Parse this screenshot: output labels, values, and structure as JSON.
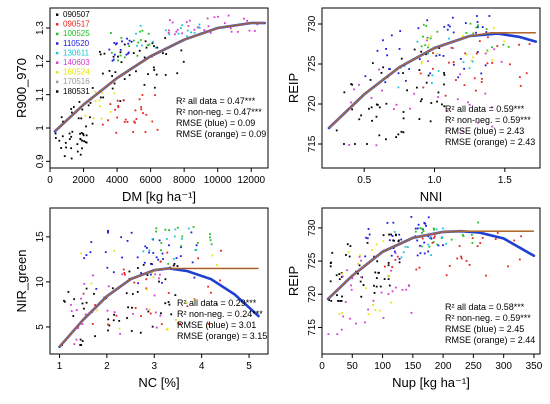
{
  "legend": {
    "entries": [
      {
        "label": "090507",
        "color": "#000000"
      },
      {
        "label": "090517",
        "color": "#e8221d"
      },
      {
        "label": "100525",
        "color": "#1fbf1f"
      },
      {
        "label": "110520",
        "color": "#1a1ae0"
      },
      {
        "label": "130611",
        "color": "#18c6d8"
      },
      {
        "label": "140603",
        "color": "#d23cd2"
      },
      {
        "label": "160524",
        "color": "#e6e60a"
      },
      {
        "label": "170516",
        "color": "#9a9a9a"
      },
      {
        "label": "180531",
        "color": "#000000"
      }
    ]
  },
  "chart_data": [
    {
      "type": "scatter",
      "xlabel": "DM [kg ha⁻¹]",
      "ylabel": "R900_970",
      "xlim": [
        0,
        13000
      ],
      "ylim": [
        0.88,
        1.36
      ],
      "xticks": [
        0,
        2000,
        4000,
        6000,
        8000,
        10000,
        12000
      ],
      "yticks": [
        0.9,
        1.0,
        1.1,
        1.2,
        1.3
      ],
      "stats": [
        "R² all data = 0.47***",
        "R² non-neg. = 0.47***",
        "RMSE (blue) = 0.09",
        "RMSE (orange) = 0.09"
      ],
      "fit_blue": [
        [
          300,
          0.99
        ],
        [
          2000,
          1.07
        ],
        [
          4000,
          1.15
        ],
        [
          6000,
          1.215
        ],
        [
          8000,
          1.265
        ],
        [
          10000,
          1.3
        ],
        [
          12000,
          1.315
        ],
        [
          12800,
          1.315
        ]
      ],
      "fit_orange": [
        [
          300,
          0.99
        ],
        [
          2000,
          1.07
        ],
        [
          4000,
          1.15
        ],
        [
          6000,
          1.215
        ],
        [
          8000,
          1.265
        ],
        [
          10000,
          1.3
        ],
        [
          12000,
          1.315
        ],
        [
          12800,
          1.315
        ]
      ],
      "clusters": [
        {
          "color": "#000000",
          "x": [
            300,
            2600
          ],
          "y": [
            0.9,
            1.08
          ],
          "n": 45,
          "trend": 0.06
        },
        {
          "color": "#000000",
          "x": [
            2500,
            8000
          ],
          "y": [
            1.08,
            1.27
          ],
          "n": 45,
          "trend": 0.05
        },
        {
          "color": "#e8221d",
          "x": [
            3000,
            6500
          ],
          "y": [
            0.97,
            1.1
          ],
          "n": 28,
          "trend": 0.03
        },
        {
          "color": "#1a1ae0",
          "x": [
            3500,
            5000
          ],
          "y": [
            1.2,
            1.27
          ],
          "n": 16,
          "trend": 0.02
        },
        {
          "color": "#1fbf1f",
          "x": [
            3500,
            6500
          ],
          "y": [
            1.2,
            1.3
          ],
          "n": 16,
          "trend": 0.02
        },
        {
          "color": "#18c6d8",
          "x": [
            5000,
            9000
          ],
          "y": [
            1.24,
            1.32
          ],
          "n": 20,
          "trend": 0.02
        },
        {
          "color": "#d23cd2",
          "x": [
            7000,
            12800
          ],
          "y": [
            1.28,
            1.34
          ],
          "n": 30,
          "trend": 0.01
        },
        {
          "color": "#e6e60a",
          "x": [
            2000,
            4000
          ],
          "y": [
            1.02,
            1.12
          ],
          "n": 10,
          "trend": 0.02
        }
      ]
    },
    {
      "type": "scatter",
      "xlabel": "NNI",
      "ylabel": "REIP",
      "xlim": [
        0.2,
        1.75
      ],
      "ylim": [
        712,
        732
      ],
      "xticks": [
        0.5,
        1.0,
        1.5
      ],
      "xtick_labels": [
        "0.5",
        "1.0",
        "1.5"
      ],
      "yticks": [
        715,
        720,
        725,
        730
      ],
      "stats": [
        "R² all data = 0.59***",
        "R² non-neg. = 0.59***",
        "RMSE (blue) = 2.43",
        "RMSE (orange) = 2.43"
      ],
      "fit_blue": [
        [
          0.25,
          717
        ],
        [
          0.5,
          721.2
        ],
        [
          0.75,
          724.6
        ],
        [
          1.0,
          727.0
        ],
        [
          1.25,
          728.5
        ],
        [
          1.45,
          728.8
        ],
        [
          1.6,
          728.4
        ],
        [
          1.72,
          727.8
        ]
      ],
      "fit_orange": [
        [
          0.25,
          717
        ],
        [
          0.5,
          721.2
        ],
        [
          0.75,
          724.6
        ],
        [
          1.0,
          727.0
        ],
        [
          1.25,
          728.5
        ],
        [
          1.4,
          728.9
        ],
        [
          1.72,
          728.9
        ]
      ],
      "clusters": [
        {
          "color": "#000000",
          "x": [
            0.3,
            1.1
          ],
          "y": [
            715,
            727
          ],
          "n": 55,
          "trend": 6
        },
        {
          "color": "#1a1ae0",
          "x": [
            0.5,
            1.4
          ],
          "y": [
            722,
            731
          ],
          "n": 45,
          "trend": 3
        },
        {
          "color": "#d23cd2",
          "x": [
            0.3,
            1.5
          ],
          "y": [
            714,
            729
          ],
          "n": 30,
          "trend": 4
        },
        {
          "color": "#e8221d",
          "x": [
            0.9,
            1.7
          ],
          "y": [
            721,
            729
          ],
          "n": 28,
          "trend": 2
        },
        {
          "color": "#1fbf1f",
          "x": [
            0.9,
            1.6
          ],
          "y": [
            726,
            731
          ],
          "n": 18,
          "trend": 1
        },
        {
          "color": "#e6e60a",
          "x": [
            0.9,
            1.6
          ],
          "y": [
            725,
            730
          ],
          "n": 14,
          "trend": 1
        },
        {
          "color": "#18c6d8",
          "x": [
            0.7,
            1.3
          ],
          "y": [
            722,
            729
          ],
          "n": 12,
          "trend": 1
        }
      ]
    },
    {
      "type": "scatter",
      "xlabel": "NC [%]",
      "ylabel": "NIR_green",
      "xlim": [
        0.8,
        5.4
      ],
      "ylim": [
        2,
        18.2
      ],
      "xticks": [
        1,
        2,
        3,
        4,
        5
      ],
      "yticks": [
        5,
        10,
        15
      ],
      "stats": [
        "R² all data = 0.29***",
        "R² non-neg. = 0.24***",
        "RMSE (blue) = 3.01",
        "RMSE (orange) = 3.15"
      ],
      "fit_blue": [
        [
          1.0,
          2.8
        ],
        [
          1.5,
          5.8
        ],
        [
          2.0,
          8.4
        ],
        [
          2.5,
          10.3
        ],
        [
          3.0,
          11.3
        ],
        [
          3.3,
          11.5
        ],
        [
          3.7,
          11.2
        ],
        [
          4.2,
          10.3
        ],
        [
          4.7,
          8.6
        ],
        [
          5.2,
          6.2
        ]
      ],
      "fit_orange": [
        [
          1.0,
          2.8
        ],
        [
          1.5,
          5.8
        ],
        [
          2.0,
          8.4
        ],
        [
          2.5,
          10.3
        ],
        [
          3.0,
          11.3
        ],
        [
          3.3,
          11.5
        ],
        [
          3.6,
          11.5
        ],
        [
          5.2,
          11.5
        ]
      ],
      "clusters": [
        {
          "color": "#000000",
          "x": [
            1.0,
            3.5
          ],
          "y": [
            3,
            12
          ],
          "n": 55,
          "trend": 4
        },
        {
          "color": "#1a1ae0",
          "x": [
            1.5,
            4.0
          ],
          "y": [
            9,
            16.5
          ],
          "n": 40,
          "trend": 1
        },
        {
          "color": "#1fbf1f",
          "x": [
            3.0,
            4.3
          ],
          "y": [
            12,
            17
          ],
          "n": 18,
          "trend": 1
        },
        {
          "color": "#e8221d",
          "x": [
            1.5,
            4.5
          ],
          "y": [
            4,
            14
          ],
          "n": 30,
          "trend": 1
        },
        {
          "color": "#d23cd2",
          "x": [
            1.2,
            3.2
          ],
          "y": [
            3,
            12
          ],
          "n": 25,
          "trend": 2
        },
        {
          "color": "#e6e60a",
          "x": [
            1.2,
            4.5
          ],
          "y": [
            4,
            15
          ],
          "n": 18,
          "trend": 1
        },
        {
          "color": "#18c6d8",
          "x": [
            2.5,
            4.0
          ],
          "y": [
            12,
            16
          ],
          "n": 10,
          "trend": 1
        }
      ]
    },
    {
      "type": "scatter",
      "xlabel": "Nup [kg ha⁻¹]",
      "ylabel": "REIP",
      "xlim": [
        0,
        360
      ],
      "ylim": [
        711,
        733
      ],
      "xticks": [
        0,
        50,
        100,
        150,
        200,
        250,
        300,
        350
      ],
      "yticks": [
        715,
        720,
        725,
        730
      ],
      "stats": [
        "R² all data = 0.58***",
        "R² non-neg. = 0.59***",
        "RMSE (blue) = 2.45",
        "RMSE (orange) = 2.44"
      ],
      "fit_blue": [
        [
          10,
          719.3
        ],
        [
          50,
          722.8
        ],
        [
          100,
          726.4
        ],
        [
          150,
          728.5
        ],
        [
          200,
          729.4
        ],
        [
          230,
          729.5
        ],
        [
          260,
          729.3
        ],
        [
          300,
          728.4
        ],
        [
          350,
          725.8
        ]
      ],
      "fit_orange": [
        [
          10,
          719.3
        ],
        [
          50,
          722.8
        ],
        [
          100,
          726.4
        ],
        [
          150,
          728.5
        ],
        [
          200,
          729.4
        ],
        [
          230,
          729.5
        ],
        [
          350,
          729.5
        ]
      ],
      "clusters": [
        {
          "color": "#000000",
          "x": [
            10,
            130
          ],
          "y": [
            719,
            729
          ],
          "n": 55,
          "trend": 4
        },
        {
          "color": "#1a1ae0",
          "x": [
            60,
            200
          ],
          "y": [
            725,
            732
          ],
          "n": 40,
          "trend": 2
        },
        {
          "color": "#e8221d",
          "x": [
            100,
            330
          ],
          "y": [
            722,
            730
          ],
          "n": 30,
          "trend": 1
        },
        {
          "color": "#d23cd2",
          "x": [
            10,
            150
          ],
          "y": [
            714,
            728
          ],
          "n": 30,
          "trend": 5
        },
        {
          "color": "#1fbf1f",
          "x": [
            150,
            260
          ],
          "y": [
            727,
            731
          ],
          "n": 18,
          "trend": 1
        },
        {
          "color": "#e6e60a",
          "x": [
            15,
            120
          ],
          "y": [
            716,
            728
          ],
          "n": 16,
          "trend": 3
        },
        {
          "color": "#18c6d8",
          "x": [
            100,
            220
          ],
          "y": [
            725,
            730
          ],
          "n": 12,
          "trend": 1
        }
      ]
    }
  ]
}
